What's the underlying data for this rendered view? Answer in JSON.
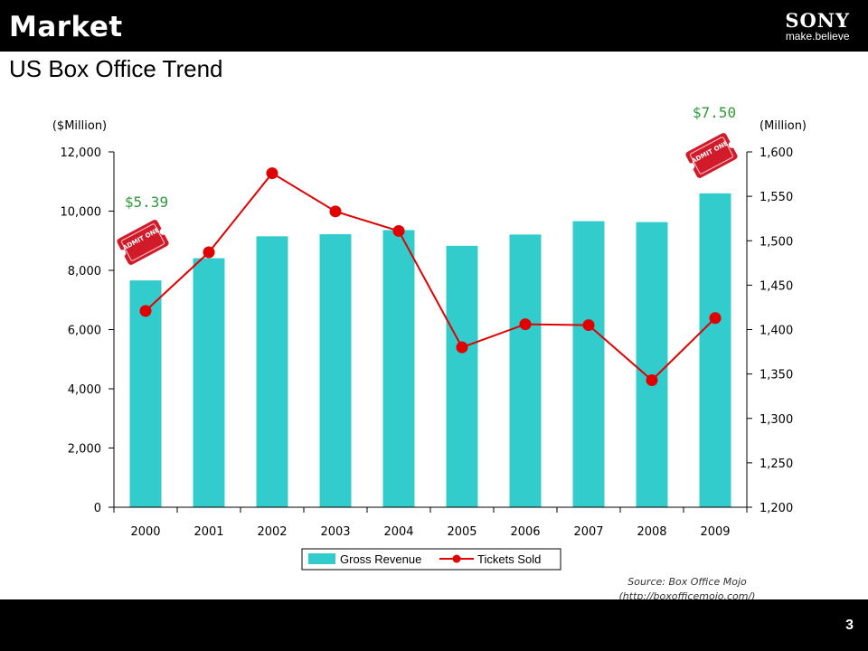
{
  "header": {
    "section_title": "Market",
    "logo_text": "SONY",
    "logo_tagline": "make.believe"
  },
  "slide": {
    "title": "US Box Office Trend",
    "source_line1": "Source: Box Office Mojo",
    "source_line2": "(http://boxofficemojo.com/)",
    "page_number": "3"
  },
  "annotations": {
    "price_2000": "$5.39",
    "price_2009": "$7.50",
    "ticket_text": "ADMIT ONE"
  },
  "colors": {
    "bar": "#33cccc",
    "line": "#e00000",
    "price_text": "#2e9b3a",
    "ticket": "#d11a2a"
  },
  "chart_data": {
    "type": "bar",
    "categories": [
      "2000",
      "2001",
      "2002",
      "2003",
      "2004",
      "2005",
      "2006",
      "2007",
      "2008",
      "2009"
    ],
    "series": [
      {
        "name": "Gross Revenue",
        "type": "bar",
        "axis": "left",
        "values": [
          7660,
          8410,
          9150,
          9220,
          9360,
          8830,
          9210,
          9660,
          9630,
          10600
        ]
      },
      {
        "name": "Tickets Sold",
        "type": "line",
        "axis": "right",
        "values": [
          1421,
          1487,
          1576,
          1533,
          1511,
          1380,
          1406,
          1405,
          1343,
          1413
        ]
      }
    ],
    "ylabel_left": "($Million)",
    "ylabel_right": "(Million)",
    "ylim_left": [
      0,
      12000
    ],
    "yticks_left": [
      "0",
      "2,000",
      "4,000",
      "6,000",
      "8,000",
      "10,000",
      "12,000"
    ],
    "ylim_right": [
      1200,
      1600
    ],
    "yticks_right": [
      "1,200",
      "1,250",
      "1,300",
      "1,350",
      "1,400",
      "1,450",
      "1,500",
      "1,550",
      "1,600"
    ],
    "grid": false,
    "legend": "bottom"
  }
}
